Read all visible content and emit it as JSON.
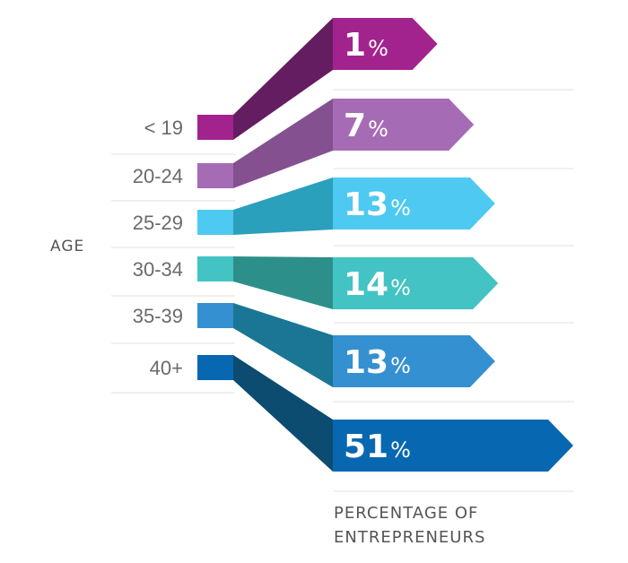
{
  "chart_data": {
    "type": "bar",
    "ylabel": "AGE",
    "xlabel_lines": [
      "PERCENTAGE OF",
      "ENTREPRENEURS"
    ],
    "categories": [
      "< 19",
      "20-24",
      "25-29",
      "30-34",
      "35-39",
      "40+"
    ],
    "values": [
      1,
      7,
      13,
      14,
      13,
      51
    ],
    "value_labels": [
      "1",
      "7",
      "13",
      "14",
      "13",
      "51"
    ],
    "unit": "%",
    "colors": [
      "#a3238e",
      "#a66bb5",
      "#4ec9f1",
      "#43c3c4",
      "#3490d0",
      "#0867b1"
    ],
    "dark_colors": [
      "#651d61",
      "#84508f",
      "#2aa0bd",
      "#2d8f8a",
      "#1a7694",
      "#0c4c70"
    ]
  }
}
